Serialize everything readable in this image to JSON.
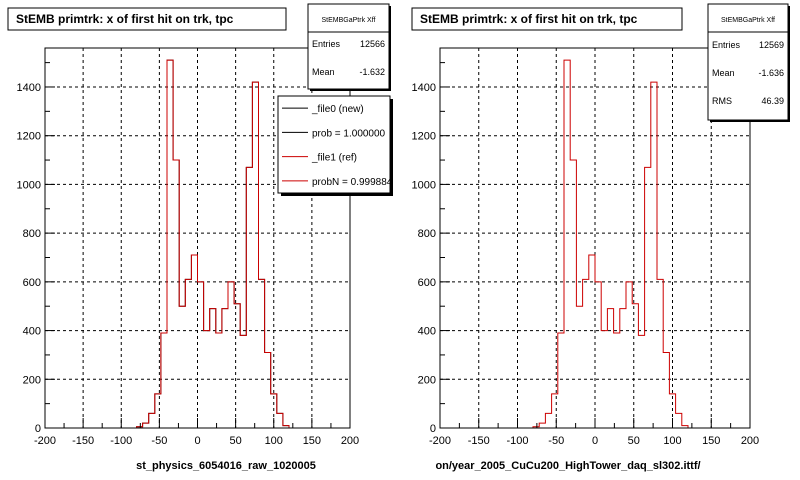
{
  "chart_data": [
    {
      "type": "histogram",
      "title": "StEMB primtrk: x of first hit on trk, tpc",
      "xlabel": "st_physics_6054016_raw_1020005",
      "xlim": [
        -200,
        200
      ],
      "ylim": [
        0,
        1560
      ],
      "grid": true,
      "x_ticks": [
        -200,
        -150,
        -100,
        -50,
        0,
        50,
        100,
        150,
        200
      ],
      "y_ticks": [
        0,
        200,
        400,
        600,
        800,
        1000,
        1200,
        1400
      ],
      "stats": {
        "name": "StEMBGaPtrk Xff",
        "rows": [
          {
            "label": "Entries",
            "value": "12566"
          },
          {
            "label": "Mean",
            "value": "-1.632"
          }
        ]
      },
      "legend": {
        "placement": "top-right",
        "entries": [
          {
            "label": "_file0 (new)",
            "color": "#000000"
          },
          {
            "label": "prob = 1.000000",
            "color": "#000000"
          },
          {
            "label": "_file1 (ref)",
            "color": "#cc0000"
          },
          {
            "label": "probN = 0.999884",
            "color": "#cc0000"
          }
        ]
      },
      "bin_edges": [
        -200,
        200
      ],
      "series": [
        {
          "name": "_file0 (new)",
          "color": "#000000",
          "values": [
            0,
            0,
            0,
            0,
            0,
            0,
            0,
            0,
            0,
            0,
            0,
            0,
            0,
            0,
            0,
            5,
            20,
            60,
            140,
            390,
            1510,
            1100,
            500,
            610,
            710,
            600,
            400,
            490,
            390,
            490,
            600,
            510,
            380,
            1070,
            1420,
            610,
            310,
            140,
            60,
            10,
            0,
            0,
            0,
            0,
            0,
            0,
            0,
            0,
            0,
            0
          ]
        },
        {
          "name": "_file1 (ref)",
          "color": "#cc0000",
          "values": [
            0,
            0,
            0,
            0,
            0,
            0,
            0,
            0,
            0,
            0,
            0,
            0,
            0,
            0,
            0,
            5,
            20,
            60,
            140,
            390,
            1510,
            1100,
            500,
            610,
            710,
            600,
            400,
            490,
            390,
            490,
            600,
            510,
            380,
            1070,
            1420,
            610,
            310,
            140,
            60,
            10,
            0,
            0,
            0,
            0,
            0,
            0,
            0,
            0,
            0,
            0
          ]
        }
      ]
    },
    {
      "type": "histogram",
      "title": "StEMB primtrk: x of first hit on trk, tpc",
      "xlabel": "on/year_2005_CuCu200_HighTower_daq_sl302.ittf/",
      "xlim": [
        -200,
        200
      ],
      "ylim": [
        0,
        1560
      ],
      "grid": true,
      "x_ticks": [
        -200,
        -150,
        -100,
        -50,
        0,
        50,
        100,
        150,
        200
      ],
      "y_ticks": [
        0,
        200,
        400,
        600,
        800,
        1000,
        1200,
        1400
      ],
      "stats": {
        "name": "StEMBGaPtrk Xff",
        "rows": [
          {
            "label": "Entries",
            "value": "12569"
          },
          {
            "label": "Mean",
            "value": "-1.636"
          },
          {
            "label": "RMS",
            "value": "46.39"
          }
        ]
      },
      "bin_edges": [
        -200,
        200
      ],
      "series": [
        {
          "name": "_file1 (ref)",
          "color": "#cc0000",
          "values": [
            0,
            0,
            0,
            0,
            0,
            0,
            0,
            0,
            0,
            0,
            0,
            0,
            0,
            0,
            0,
            5,
            20,
            60,
            140,
            390,
            1510,
            1100,
            500,
            610,
            710,
            600,
            400,
            490,
            390,
            490,
            600,
            510,
            380,
            1070,
            1420,
            610,
            310,
            140,
            60,
            10,
            0,
            0,
            0,
            0,
            0,
            0,
            0,
            0,
            0,
            0
          ]
        }
      ]
    }
  ]
}
